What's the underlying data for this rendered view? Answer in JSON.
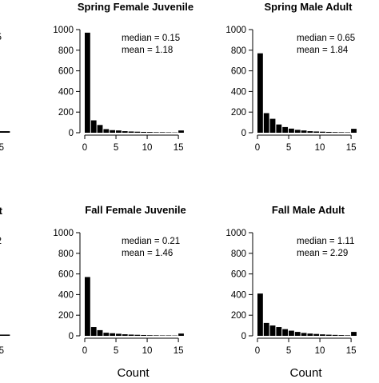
{
  "chart_data": [
    {
      "type": "bar",
      "title": "",
      "xlabel": "",
      "ylabel": "",
      "x_ticks": [
        "15"
      ],
      "y_ticks": [],
      "annotations": [
        "5"
      ],
      "xlim": [
        0,
        15.5
      ],
      "ylim": [
        0,
        1000
      ],
      "bins": [
        {
          "x0": 15,
          "x1": 16,
          "value": 15
        }
      ]
    },
    {
      "type": "bar",
      "title": "Spring Female Juvenile",
      "xlabel": "",
      "ylabel": "",
      "x_ticks": [
        "0",
        "5",
        "10",
        "15"
      ],
      "y_ticks": [
        "0",
        "200",
        "400",
        "600",
        "800",
        "1000"
      ],
      "annotations": [
        "median = 0.15",
        "mean = 1.18"
      ],
      "xlim": [
        0,
        15.5
      ],
      "ylim": [
        0,
        1000
      ],
      "bins": [
        {
          "x0": 0,
          "x1": 1,
          "value": 970
        },
        {
          "x0": 1,
          "x1": 2,
          "value": 120
        },
        {
          "x0": 2,
          "x1": 3,
          "value": 75
        },
        {
          "x0": 3,
          "x1": 4,
          "value": 35
        },
        {
          "x0": 4,
          "x1": 5,
          "value": 25
        },
        {
          "x0": 5,
          "x1": 6,
          "value": 22
        },
        {
          "x0": 6,
          "x1": 7,
          "value": 15
        },
        {
          "x0": 7,
          "x1": 8,
          "value": 12
        },
        {
          "x0": 8,
          "x1": 9,
          "value": 10
        },
        {
          "x0": 9,
          "x1": 10,
          "value": 8
        },
        {
          "x0": 10,
          "x1": 11,
          "value": 7
        },
        {
          "x0": 11,
          "x1": 12,
          "value": 5
        },
        {
          "x0": 12,
          "x1": 13,
          "value": 5
        },
        {
          "x0": 13,
          "x1": 14,
          "value": 4
        },
        {
          "x0": 14,
          "x1": 15,
          "value": 3
        },
        {
          "x0": 15,
          "x1": 16,
          "value": 22
        }
      ]
    },
    {
      "type": "bar",
      "title": "Spring Male Adult",
      "xlabel": "",
      "ylabel": "",
      "x_ticks": [
        "0",
        "5",
        "10",
        "15"
      ],
      "y_ticks": [
        "0",
        "200",
        "400",
        "600",
        "800",
        "1000"
      ],
      "annotations": [
        "median = 0.65",
        "mean = 1.84"
      ],
      "xlim": [
        0,
        15.5
      ],
      "ylim": [
        0,
        1000
      ],
      "bins": [
        {
          "x0": 0,
          "x1": 1,
          "value": 770
        },
        {
          "x0": 1,
          "x1": 2,
          "value": 190
        },
        {
          "x0": 2,
          "x1": 3,
          "value": 135
        },
        {
          "x0": 3,
          "x1": 4,
          "value": 80
        },
        {
          "x0": 4,
          "x1": 5,
          "value": 55
        },
        {
          "x0": 5,
          "x1": 6,
          "value": 40
        },
        {
          "x0": 6,
          "x1": 7,
          "value": 28
        },
        {
          "x0": 7,
          "x1": 8,
          "value": 22
        },
        {
          "x0": 8,
          "x1": 9,
          "value": 15
        },
        {
          "x0": 9,
          "x1": 10,
          "value": 12
        },
        {
          "x0": 10,
          "x1": 11,
          "value": 10
        },
        {
          "x0": 11,
          "x1": 12,
          "value": 8
        },
        {
          "x0": 12,
          "x1": 13,
          "value": 6
        },
        {
          "x0": 13,
          "x1": 14,
          "value": 5
        },
        {
          "x0": 14,
          "x1": 15,
          "value": 4
        },
        {
          "x0": 15,
          "x1": 16,
          "value": 38
        }
      ]
    },
    {
      "type": "bar",
      "title": "",
      "xlabel": "",
      "ylabel": "",
      "x_ticks": [
        "15"
      ],
      "y_ticks": [],
      "annotations": [
        "t",
        "2"
      ],
      "xlim": [
        0,
        15.5
      ],
      "ylim": [
        0,
        1000
      ],
      "bins": [
        {
          "x0": 15,
          "x1": 16,
          "value": 12
        }
      ]
    },
    {
      "type": "bar",
      "title": "Fall Female Juvenile",
      "xlabel": "Count",
      "ylabel": "",
      "x_ticks": [
        "0",
        "5",
        "10",
        "15"
      ],
      "y_ticks": [
        "0",
        "200",
        "400",
        "600",
        "800",
        "1000"
      ],
      "annotations": [
        "median = 0.21",
        "mean = 1.46"
      ],
      "xlim": [
        0,
        15.5
      ],
      "ylim": [
        0,
        1000
      ],
      "bins": [
        {
          "x0": 0,
          "x1": 1,
          "value": 570
        },
        {
          "x0": 1,
          "x1": 2,
          "value": 85
        },
        {
          "x0": 2,
          "x1": 3,
          "value": 55
        },
        {
          "x0": 3,
          "x1": 4,
          "value": 30
        },
        {
          "x0": 4,
          "x1": 5,
          "value": 25
        },
        {
          "x0": 5,
          "x1": 6,
          "value": 20
        },
        {
          "x0": 6,
          "x1": 7,
          "value": 15
        },
        {
          "x0": 7,
          "x1": 8,
          "value": 12
        },
        {
          "x0": 8,
          "x1": 9,
          "value": 10
        },
        {
          "x0": 9,
          "x1": 10,
          "value": 8
        },
        {
          "x0": 10,
          "x1": 11,
          "value": 6
        },
        {
          "x0": 11,
          "x1": 12,
          "value": 5
        },
        {
          "x0": 12,
          "x1": 13,
          "value": 4
        },
        {
          "x0": 13,
          "x1": 14,
          "value": 4
        },
        {
          "x0": 14,
          "x1": 15,
          "value": 3
        },
        {
          "x0": 15,
          "x1": 16,
          "value": 22
        }
      ]
    },
    {
      "type": "bar",
      "title": "Fall Male Adult",
      "xlabel": "Count",
      "ylabel": "",
      "x_ticks": [
        "0",
        "5",
        "10",
        "15"
      ],
      "y_ticks": [
        "0",
        "200",
        "400",
        "600",
        "800",
        "1000"
      ],
      "annotations": [
        "median = 1.11",
        "mean = 2.29"
      ],
      "xlim": [
        0,
        15.5
      ],
      "ylim": [
        0,
        1000
      ],
      "bins": [
        {
          "x0": 0,
          "x1": 1,
          "value": 410
        },
        {
          "x0": 1,
          "x1": 2,
          "value": 125
        },
        {
          "x0": 2,
          "x1": 3,
          "value": 100
        },
        {
          "x0": 3,
          "x1": 4,
          "value": 85
        },
        {
          "x0": 4,
          "x1": 5,
          "value": 65
        },
        {
          "x0": 5,
          "x1": 6,
          "value": 50
        },
        {
          "x0": 6,
          "x1": 7,
          "value": 38
        },
        {
          "x0": 7,
          "x1": 8,
          "value": 28
        },
        {
          "x0": 8,
          "x1": 9,
          "value": 22
        },
        {
          "x0": 9,
          "x1": 10,
          "value": 18
        },
        {
          "x0": 10,
          "x1": 11,
          "value": 14
        },
        {
          "x0": 11,
          "x1": 12,
          "value": 11
        },
        {
          "x0": 12,
          "x1": 13,
          "value": 9
        },
        {
          "x0": 13,
          "x1": 14,
          "value": 7
        },
        {
          "x0": 14,
          "x1": 15,
          "value": 5
        },
        {
          "x0": 15,
          "x1": 16,
          "value": 38
        }
      ]
    }
  ],
  "colors": {
    "bar_fill": "#000000",
    "axis": "#000000",
    "background": "#ffffff"
  }
}
